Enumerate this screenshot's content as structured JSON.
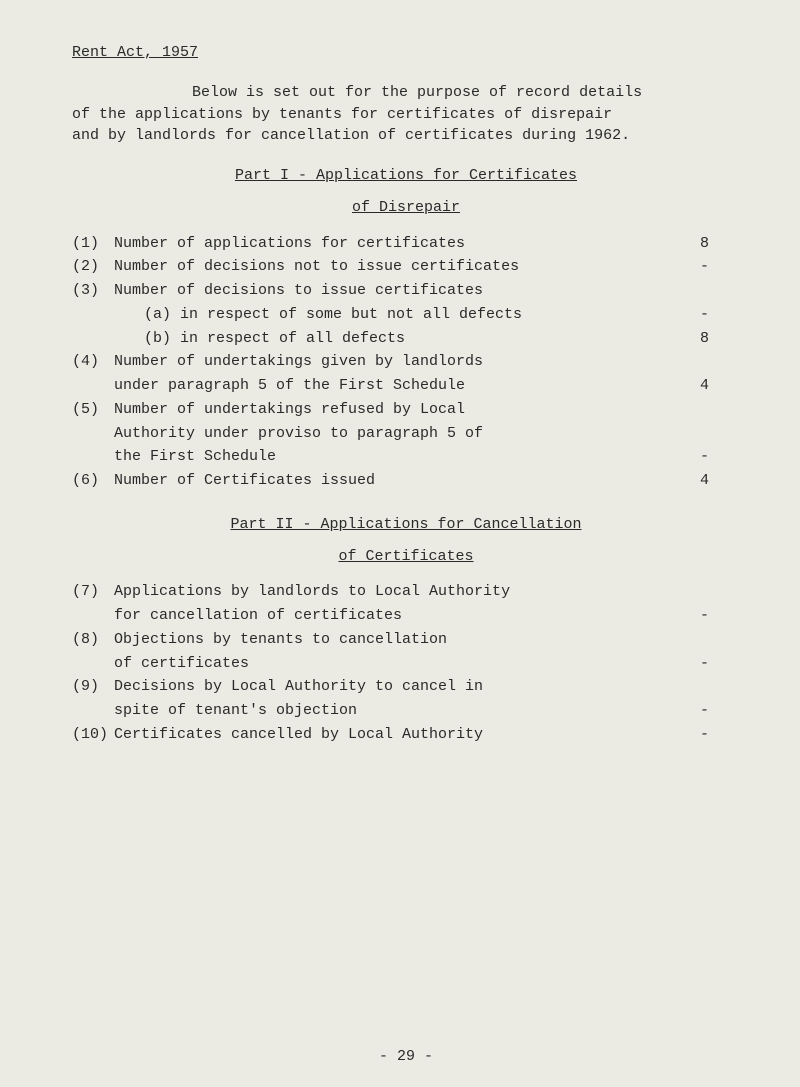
{
  "title": "Rent Act, 1957",
  "intro_line1": "Below is set out for the purpose of record details",
  "intro_line2": "of the applications by tenants for certificates of disrepair",
  "intro_line3": "and by landlords for cancellation of certificates during 1962.",
  "part1_heading": "Part I - Applications for Certificates",
  "part1_sub": "of Disrepair",
  "items1": [
    {
      "num": "(1)",
      "text": "Number of applications for certificates",
      "val": "8"
    },
    {
      "num": "(2)",
      "text": "Number of decisions not to issue certificates",
      "val": "-"
    },
    {
      "num": "(3)",
      "text": "Number of decisions to issue certificates",
      "val": ""
    },
    {
      "num": "",
      "text_sub": "(a)  in respect of some but not all defects",
      "val": "-"
    },
    {
      "num": "",
      "text_sub": "(b)  in respect of all defects",
      "val": "8"
    },
    {
      "num": "(4)",
      "text": "Number of undertakings given by landlords",
      "val": ""
    },
    {
      "num": "",
      "text_cont": "under paragraph 5 of the First Schedule",
      "val": "4"
    },
    {
      "num": "(5)",
      "text": "Number of undertakings refused by Local",
      "val": ""
    },
    {
      "num": "",
      "text_cont": "Authority under proviso to paragraph 5 of",
      "val": ""
    },
    {
      "num": "",
      "text_cont": "the First Schedule",
      "val": "-"
    },
    {
      "num": "(6)",
      "text": "Number of Certificates issued",
      "val": "4"
    }
  ],
  "part2_heading": "Part II - Applications for Cancellation",
  "part2_sub": "of Certificates",
  "items2": [
    {
      "num": "(7)",
      "text": "Applications by landlords to Local Authority",
      "val": ""
    },
    {
      "num": "",
      "text_cont": "for cancellation of certificates",
      "val": "-"
    },
    {
      "num": "(8)",
      "text": "Objections by tenants to cancellation",
      "val": ""
    },
    {
      "num": "",
      "text_cont": "of certificates",
      "val": "-"
    },
    {
      "num": "(9)",
      "text": "Decisions by Local Authority to cancel in",
      "val": ""
    },
    {
      "num": "",
      "text_cont": "spite of tenant's objection",
      "val": "-"
    },
    {
      "num": "(10)",
      "text": "Certificates cancelled by Local Authority",
      "val": "-"
    }
  ],
  "footer": "- 29 -",
  "colors": {
    "bg": "#ebebe4",
    "text": "#2a2a2a"
  },
  "typography": {
    "family": "Courier New",
    "size_pt": 15
  }
}
